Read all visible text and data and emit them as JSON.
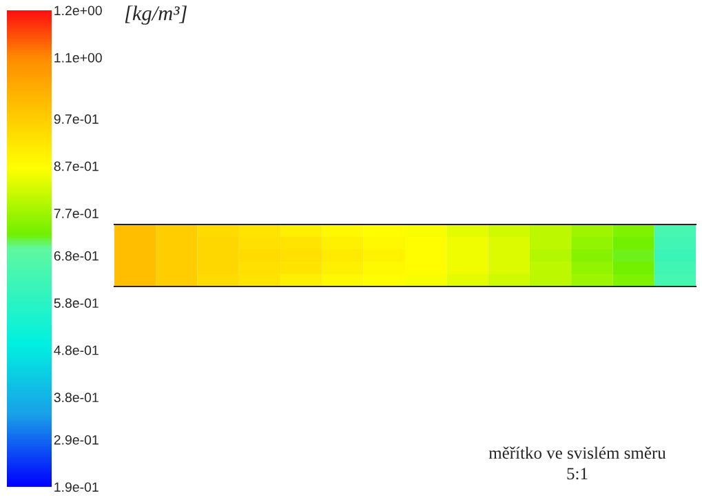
{
  "chart_data": {
    "type": "heatmap",
    "clabel": "[kg/m³]",
    "categories": [
      null,
      null,
      null,
      null,
      null,
      null,
      null,
      null,
      null,
      null,
      null,
      null,
      null,
      null
    ],
    "y_categories": [
      null,
      null,
      null,
      null,
      null
    ],
    "cells": [
      [
        1.0,
        0.97,
        0.94,
        0.92,
        0.9,
        0.88,
        0.87,
        0.86,
        0.84,
        0.82,
        0.8,
        0.77,
        0.74,
        0.64
      ],
      [
        1.0,
        0.97,
        0.95,
        0.93,
        0.92,
        0.9,
        0.88,
        0.87,
        0.85,
        0.83,
        0.8,
        0.76,
        0.73,
        0.63
      ],
      [
        1.0,
        0.97,
        0.95,
        0.94,
        0.93,
        0.91,
        0.89,
        0.87,
        0.85,
        0.83,
        0.79,
        0.75,
        0.72,
        0.62
      ],
      [
        1.0,
        0.97,
        0.95,
        0.93,
        0.92,
        0.9,
        0.88,
        0.87,
        0.85,
        0.83,
        0.8,
        0.76,
        0.73,
        0.63
      ],
      [
        1.0,
        0.97,
        0.94,
        0.92,
        0.9,
        0.88,
        0.87,
        0.86,
        0.84,
        0.82,
        0.8,
        0.77,
        0.74,
        0.64
      ]
    ],
    "clim": [
      0.19,
      1.2
    ],
    "cticks": [
      {
        "value": 0.19,
        "label": "1.9e-01"
      },
      {
        "value": 0.29,
        "label": "2.9e-01"
      },
      {
        "value": 0.38,
        "label": "3.8e-01"
      },
      {
        "value": 0.48,
        "label": "4.8e-01"
      },
      {
        "value": 0.58,
        "label": "5.8e-01"
      },
      {
        "value": 0.68,
        "label": "6.8e-01"
      },
      {
        "value": 0.77,
        "label": "7.7e-01"
      },
      {
        "value": 0.87,
        "label": "8.7e-01"
      },
      {
        "value": 0.97,
        "label": "9.7e-01"
      },
      {
        "value": 1.1,
        "label": "1.1e+00"
      },
      {
        "value": 1.2,
        "label": "1.2e+00"
      }
    ],
    "annotations": [
      "měřítko ve svislém směru",
      "5:1"
    ]
  }
}
